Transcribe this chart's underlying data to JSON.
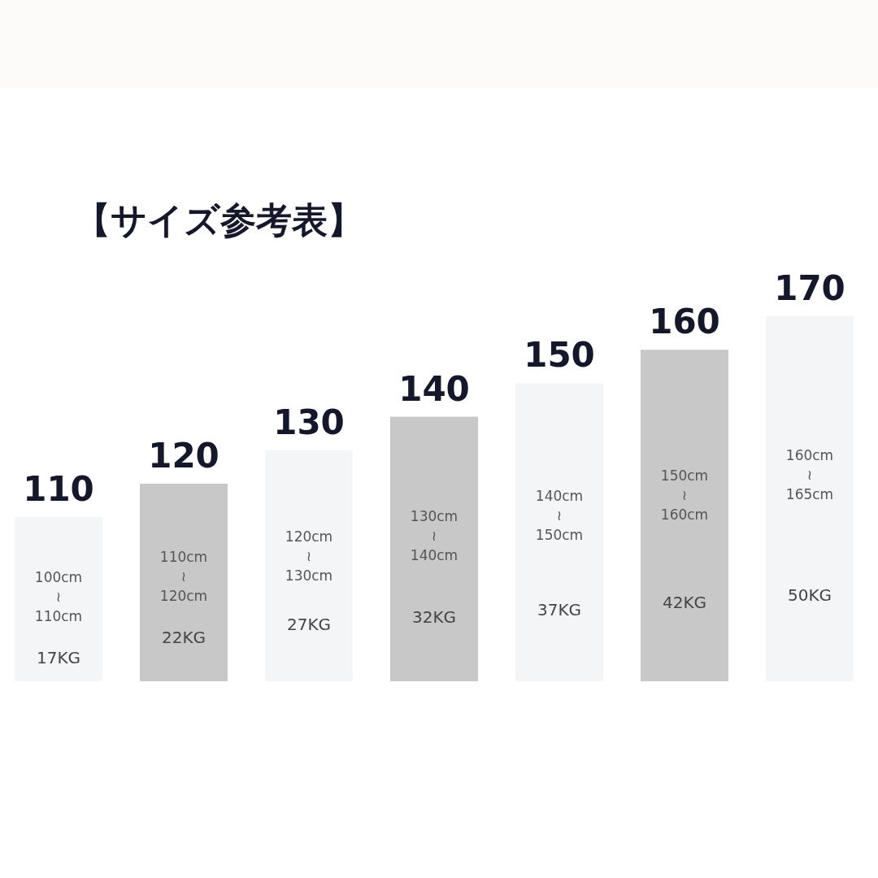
{
  "chart_data": {
    "type": "bar",
    "title": "【サイズ参考表】",
    "data_labels": true,
    "ylim": [
      61,
      170
    ],
    "tick_labels": false,
    "categories": [
      "100cm\n≀\n110cm",
      "110cm\n≀\n120cm",
      "120cm\n≀\n130cm",
      "130cm\n≀\n140cm",
      "140cm\n≀\n150cm",
      "150cm\n≀\n160cm",
      "160cm\n≀\n165cm"
    ],
    "values": [
      110,
      120,
      130,
      140,
      150,
      160,
      170
    ],
    "colors": [
      "#f4f5f7",
      "#c8c8c8",
      "#f4f5f7",
      "#c8c8c8",
      "#f4f5f7",
      "#c8c8c8",
      "#f4f5f7"
    ],
    "annotations": [
      "17KG",
      "22KG",
      "27KG",
      "32KG",
      "37KG",
      "42KG",
      "50KG"
    ]
  }
}
